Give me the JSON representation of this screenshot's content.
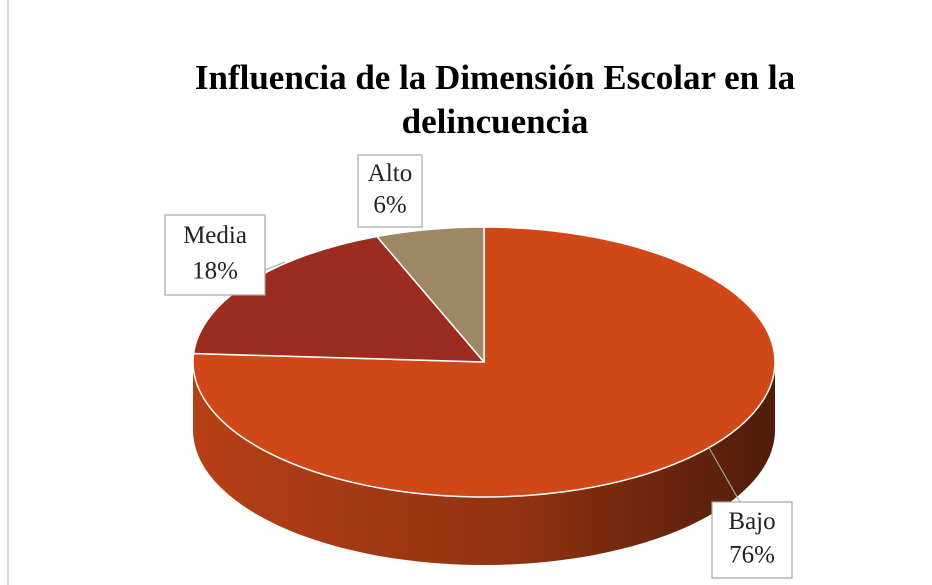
{
  "chart_data": {
    "type": "pie",
    "title": "Influencia de la Dimensión Escolar en la delincuencia",
    "categories": [
      "Bajo",
      "Media",
      "Alto"
    ],
    "values": [
      76,
      18,
      6
    ],
    "value_labels": [
      "76%",
      "18%",
      "6%"
    ],
    "colors": [
      "#d04818",
      "#9c2b20",
      "#9e8765"
    ]
  }
}
